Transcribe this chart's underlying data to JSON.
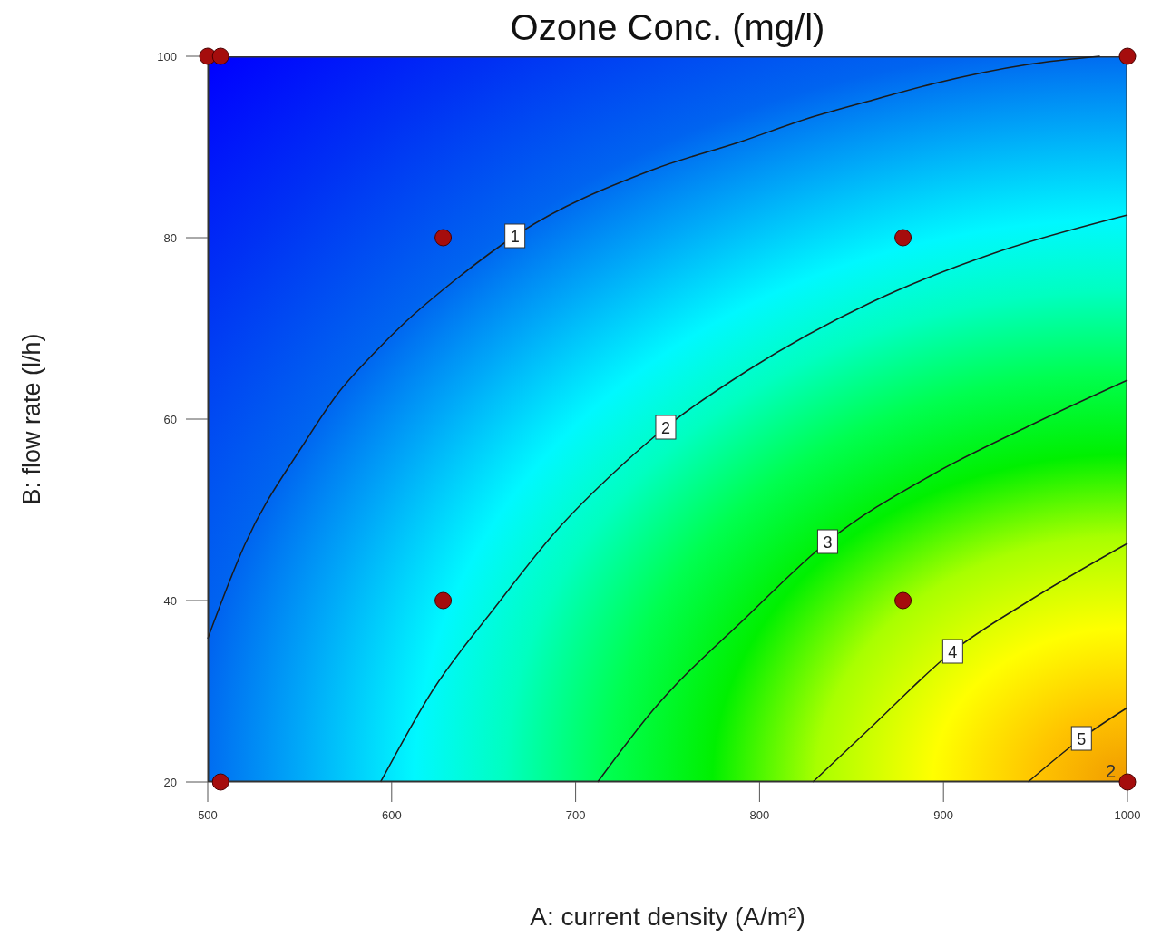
{
  "chart_data": {
    "type": "line",
    "title": "Ozone Conc. (mg/l)",
    "xlabel": "A: current density (A/m²)",
    "ylabel": "B: flow rate (l/h)",
    "xlim": [
      500,
      1000
    ],
    "xticks": [
      500,
      600,
      700,
      800,
      900,
      1000
    ],
    "ylim": [
      20,
      100
    ],
    "yticks": [
      20,
      40,
      60,
      80,
      100
    ],
    "series": [
      {
        "name": "1",
        "type": "line",
        "color": "#1c1c1c",
        "x": [
          500,
          520,
          552,
          571,
          591,
          608,
          630,
          667,
          742,
          790,
          827,
          862,
          895,
          946,
          985
        ],
        "values": [
          35.8,
          46.1,
          57.2,
          62.9,
          67.4,
          70.8,
          74.6,
          80.2,
          87.5,
          90.6,
          93.2,
          95.2,
          97,
          99.1,
          100
        ]
      },
      {
        "name": "2",
        "type": "line",
        "color": "#1c1c1c",
        "x": [
          594,
          622,
          656,
          690,
          724,
          749,
          793,
          861,
          929,
          1000
        ],
        "values": [
          20,
          30,
          39.2,
          47.8,
          54.7,
          59.1,
          65.3,
          72.9,
          78.4,
          82.5
        ]
      },
      {
        "name": "3",
        "type": "line",
        "color": "#1c1c1c",
        "x": [
          712,
          742,
          793,
          837,
          895,
          946,
          1000
        ],
        "values": [
          20,
          27.9,
          38.2,
          46.5,
          54,
          59.2,
          64.3
        ]
      },
      {
        "name": "4",
        "type": "line",
        "color": "#1c1c1c",
        "x": [
          829,
          861,
          905,
          946,
          1000
        ],
        "values": [
          20,
          26.1,
          34.4,
          39.9,
          46.3
        ]
      },
      {
        "name": "5",
        "type": "line",
        "color": "#1c1c1c",
        "x": [
          946,
          975,
          1000
        ],
        "values": [
          20,
          24.8,
          28.2
        ]
      },
      {
        "type": "scatter",
        "color": "#a50d0d",
        "marker": "circle",
        "x": [
          500,
          507,
          507,
          628,
          878,
          628,
          878,
          1000,
          1000
        ],
        "values": [
          100,
          100,
          20,
          80,
          80,
          40,
          40,
          100,
          20
        ]
      }
    ],
    "annotations": [
      {
        "text": "2",
        "x": 1000,
        "y": 20
      }
    ]
  }
}
